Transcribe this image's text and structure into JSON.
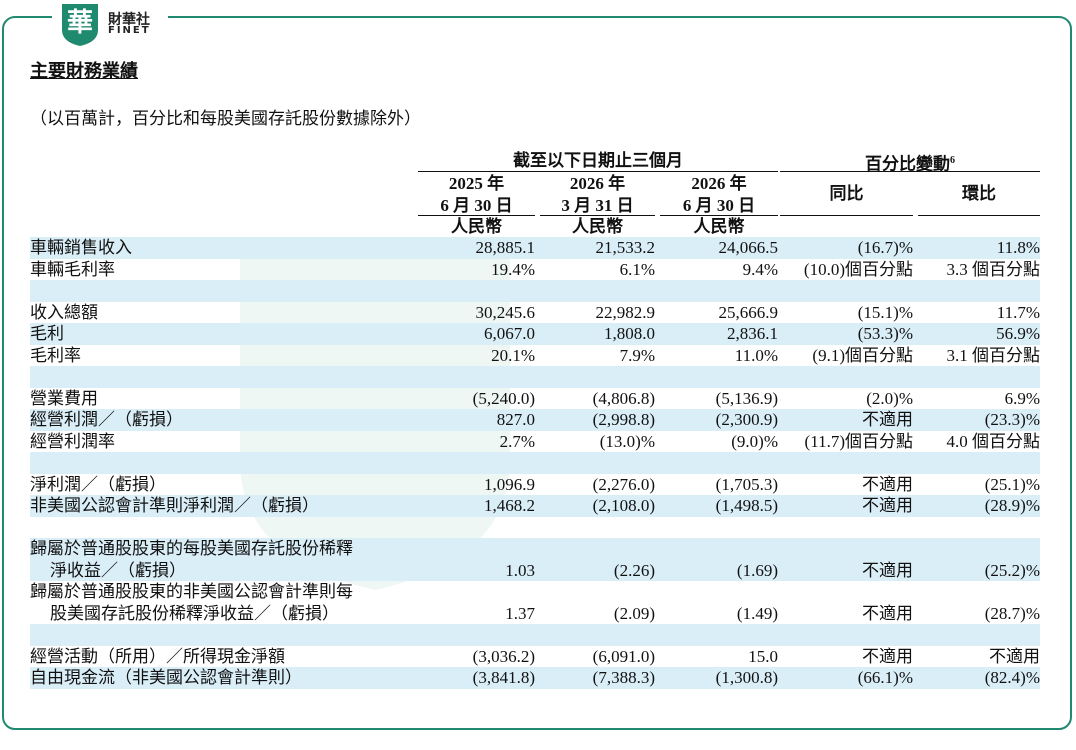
{
  "logo": {
    "mark": "華",
    "name": "財華社",
    "sub": "FINET"
  },
  "title": "主要財務業績",
  "note": "（以百萬計，百分比和每股美國存託股份數據除外）",
  "table": {
    "group_headers": [
      {
        "text": "截至以下日期止三個月"
      },
      {
        "text": "百分比變動",
        "sup": "6"
      }
    ],
    "columns": [
      {
        "lines": [
          "2025 年",
          "6 月 30 日"
        ],
        "currency": "人民幣"
      },
      {
        "lines": [
          "2026 年",
          "3 月 31 日"
        ],
        "currency": "人民幣"
      },
      {
        "lines": [
          "2026 年",
          "6 月 30 日"
        ],
        "currency": "人民幣"
      },
      {
        "lines": [
          "同比"
        ]
      },
      {
        "lines": [
          "環比"
        ]
      }
    ],
    "sections": [
      [
        {
          "label": [
            "車輛銷售收入"
          ],
          "cells": [
            "28,885.1",
            "21,533.2",
            "24,066.5",
            "(16.7)%",
            "11.8%"
          ]
        },
        {
          "label": [
            "車輛毛利率"
          ],
          "cells": [
            "19.4%",
            "6.1%",
            "9.4%",
            "(10.0)個百分點",
            "3.3 個百分點"
          ]
        }
      ],
      [
        {
          "label": [
            "收入總額"
          ],
          "cells": [
            "30,245.6",
            "22,982.9",
            "25,666.9",
            "(15.1)%",
            "11.7%"
          ]
        },
        {
          "label": [
            "毛利"
          ],
          "cells": [
            "6,067.0",
            "1,808.0",
            "2,836.1",
            "(53.3)%",
            "56.9%"
          ]
        },
        {
          "label": [
            "毛利率"
          ],
          "cells": [
            "20.1%",
            "7.9%",
            "11.0%",
            "(9.1)個百分點",
            "3.1 個百分點"
          ]
        }
      ],
      [
        {
          "label": [
            "營業費用"
          ],
          "cells": [
            "(5,240.0)",
            "(4,806.8)",
            "(5,136.9)",
            "(2.0)%",
            "6.9%"
          ]
        },
        {
          "label": [
            "經營利潤／（虧損）"
          ],
          "cells": [
            "827.0",
            "(2,998.8)",
            "(2,300.9)",
            "不適用",
            "(23.3)%"
          ]
        },
        {
          "label": [
            "經營利潤率"
          ],
          "cells": [
            "2.7%",
            "(13.0)%",
            "(9.0)%",
            "(11.7)個百分點",
            "4.0 個百分點"
          ]
        }
      ],
      [
        {
          "label": [
            "淨利潤／（虧損）"
          ],
          "cells": [
            "1,096.9",
            "(2,276.0)",
            "(1,705.3)",
            "不適用",
            "(25.1)%"
          ]
        },
        {
          "label": [
            "非美國公認會計準則淨利潤／（虧損）"
          ],
          "cells": [
            "1,468.2",
            "(2,108.0)",
            "(1,498.5)",
            "不適用",
            "(28.9)%"
          ]
        }
      ],
      [
        {
          "label": [
            "歸屬於普通股股東的每股美國存託股份稀釋",
            "淨收益／（虧損）"
          ],
          "cells": [
            "1.03",
            "(2.26)",
            "(1.69)",
            "不適用",
            "(25.2)%"
          ]
        },
        {
          "label": [
            "歸屬於普通股股東的非美國公認會計準則每",
            "股美國存託股份稀釋淨收益／（虧損）"
          ],
          "cells": [
            "1.37",
            "(2.09)",
            "(1.49)",
            "不適用",
            "(28.7)%"
          ]
        }
      ],
      [
        {
          "label": [
            "經營活動（所用）／所得現金淨額"
          ],
          "cells": [
            "(3,036.2)",
            "(6,091.0)",
            "15.0",
            "不適用",
            "不適用"
          ]
        },
        {
          "label": [
            "自由現金流（非美國公認會計準則）"
          ],
          "cells": [
            "(3,841.8)",
            "(7,388.3)",
            "(1,300.8)",
            "(66.1)%",
            "(82.4)%"
          ]
        }
      ]
    ]
  }
}
